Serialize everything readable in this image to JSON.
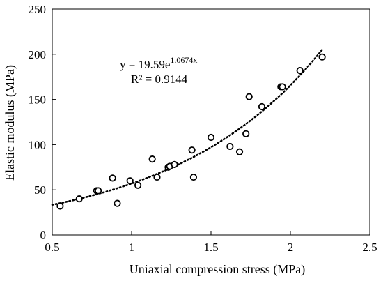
{
  "chart_data": {
    "type": "scatter",
    "xlabel": "Uniaxial compression stress (MPa)",
    "ylabel": "Elastic modulus (MPa)",
    "xlim": [
      0.5,
      2.5
    ],
    "ylim": [
      0,
      250
    ],
    "x_ticks": [
      "0.5",
      "1",
      "1.5",
      "2",
      "2.5"
    ],
    "y_ticks": [
      "0",
      "50",
      "100",
      "150",
      "200",
      "250"
    ],
    "grid": false,
    "marker": "open-circle",
    "marker_color": "#000000",
    "points": [
      {
        "x": 0.55,
        "y": 32
      },
      {
        "x": 0.67,
        "y": 40
      },
      {
        "x": 0.78,
        "y": 49
      },
      {
        "x": 0.79,
        "y": 49
      },
      {
        "x": 0.88,
        "y": 63
      },
      {
        "x": 0.91,
        "y": 35
      },
      {
        "x": 0.99,
        "y": 60
      },
      {
        "x": 1.04,
        "y": 55
      },
      {
        "x": 1.13,
        "y": 84
      },
      {
        "x": 1.16,
        "y": 64
      },
      {
        "x": 1.23,
        "y": 75
      },
      {
        "x": 1.24,
        "y": 76
      },
      {
        "x": 1.27,
        "y": 78
      },
      {
        "x": 1.38,
        "y": 94
      },
      {
        "x": 1.39,
        "y": 64
      },
      {
        "x": 1.5,
        "y": 108
      },
      {
        "x": 1.62,
        "y": 98
      },
      {
        "x": 1.68,
        "y": 92
      },
      {
        "x": 1.72,
        "y": 112
      },
      {
        "x": 1.74,
        "y": 153
      },
      {
        "x": 1.82,
        "y": 142
      },
      {
        "x": 1.94,
        "y": 164
      },
      {
        "x": 1.95,
        "y": 164
      },
      {
        "x": 2.06,
        "y": 182
      },
      {
        "x": 2.2,
        "y": 197
      }
    ],
    "trendline": {
      "type": "exponential",
      "style": "dotted",
      "a": 19.59,
      "b": 1.0674,
      "x_range": [
        0.5,
        2.2
      ],
      "equation_main": "y = 19.59e",
      "equation_exponent": "1.0674x",
      "r_squared": "R² = 0.9144"
    }
  }
}
